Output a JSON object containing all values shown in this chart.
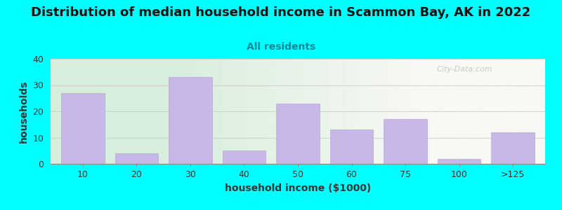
{
  "title": "Distribution of median household income in Scammon Bay, AK in 2022",
  "subtitle": "All residents",
  "xlabel": "household income ($1000)",
  "ylabel": "households",
  "background_color": "#00FFFF",
  "bar_color": "#C8B8E8",
  "bar_edge_color": "#B8A8D8",
  "categories": [
    "10",
    "20",
    "30",
    "40",
    "50",
    "60",
    "75",
    "100",
    ">125"
  ],
  "values": [
    27,
    4,
    33,
    5,
    23,
    13,
    17,
    2,
    12
  ],
  "ylim": [
    0,
    40
  ],
  "yticks": [
    0,
    10,
    20,
    30,
    40
  ],
  "title_fontsize": 13,
  "subtitle_fontsize": 10,
  "axis_label_fontsize": 10,
  "tick_fontsize": 9,
  "watermark_text": "City-Data.com",
  "grid_color": "#d0d0d0",
  "plot_bg_left_color": "#d8eedd",
  "plot_bg_right_color": "#f8f8f4",
  "subtitle_color": "#008899",
  "title_color": "#111111",
  "label_color": "#333333"
}
